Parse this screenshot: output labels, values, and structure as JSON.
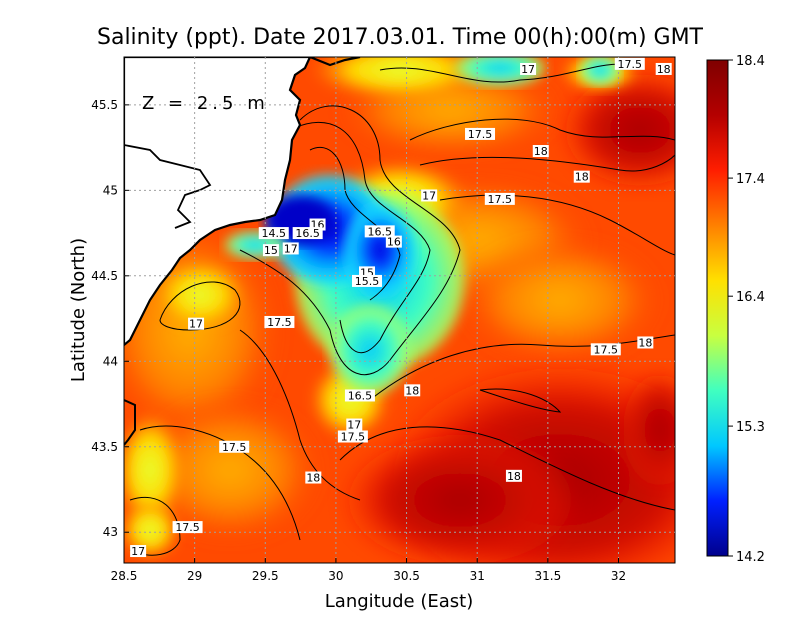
{
  "title": "Salinity (ppt). Date 2017.03.01. Time 00(h):00(m) GMT",
  "depth_label": "Z = 2.5 m",
  "xlabel": "Langitude (East)",
  "ylabel": "Latitude (North)",
  "chart_data": {
    "type": "heatmap",
    "title": "Salinity (ppt). Date 2017.03.01. Time 00(h):00(m) GMT",
    "xlabel": "Langitude (East)",
    "ylabel": "Latitude (North)",
    "xlim": [
      28.5,
      32.4
    ],
    "ylim": [
      42.82,
      45.78
    ],
    "x_ticks": [
      "28.5",
      "29",
      "29.5",
      "30",
      "30.5",
      "31",
      "31.5",
      "32"
    ],
    "y_ticks": [
      "43",
      "43.5",
      "44",
      "44.5",
      "45",
      "45.5"
    ],
    "colorbar": {
      "range": [
        14.2,
        18.4
      ],
      "ticks": [
        "14.2",
        "15.3",
        "16.4",
        "17.4",
        "18.4"
      ],
      "colormap": [
        "#00008c",
        "#0020ff",
        "#00c8ff",
        "#40ffc0",
        "#c8ff40",
        "#ffe000",
        "#ff8000",
        "#ff1e00",
        "#b40000",
        "#7f0000"
      ]
    },
    "contour_labels": [
      {
        "text": "17",
        "x": 31.36,
        "y": 45.71
      },
      {
        "text": "17.5",
        "x": 32.08,
        "y": 45.74
      },
      {
        "text": "18",
        "x": 32.32,
        "y": 45.71
      },
      {
        "text": "17.5",
        "x": 31.02,
        "y": 45.33
      },
      {
        "text": "18",
        "x": 31.45,
        "y": 45.23
      },
      {
        "text": "18",
        "x": 31.74,
        "y": 45.08
      },
      {
        "text": "17",
        "x": 30.66,
        "y": 44.97
      },
      {
        "text": "17.5",
        "x": 31.16,
        "y": 44.95
      },
      {
        "text": "16",
        "x": 29.87,
        "y": 44.8
      },
      {
        "text": "14.5",
        "x": 29.56,
        "y": 44.75
      },
      {
        "text": "16.5",
        "x": 29.8,
        "y": 44.75
      },
      {
        "text": "16.5",
        "x": 30.31,
        "y": 44.76
      },
      {
        "text": "16",
        "x": 30.41,
        "y": 44.7
      },
      {
        "text": "15",
        "x": 29.54,
        "y": 44.65
      },
      {
        "text": "17",
        "x": 29.68,
        "y": 44.66
      },
      {
        "text": "15",
        "x": 30.22,
        "y": 44.52
      },
      {
        "text": "15.5",
        "x": 30.22,
        "y": 44.47
      },
      {
        "text": "17",
        "x": 29.01,
        "y": 44.22
      },
      {
        "text": "17.5",
        "x": 29.6,
        "y": 44.23
      },
      {
        "text": "17.5",
        "x": 31.91,
        "y": 44.07
      },
      {
        "text": "18",
        "x": 32.19,
        "y": 44.11
      },
      {
        "text": "18",
        "x": 30.54,
        "y": 43.83
      },
      {
        "text": "16.5",
        "x": 30.17,
        "y": 43.8
      },
      {
        "text": "17",
        "x": 30.13,
        "y": 43.63
      },
      {
        "text": "17.5",
        "x": 30.12,
        "y": 43.56
      },
      {
        "text": "17.5",
        "x": 29.28,
        "y": 43.5
      },
      {
        "text": "18",
        "x": 29.84,
        "y": 43.32
      },
      {
        "text": "18",
        "x": 31.26,
        "y": 43.33
      },
      {
        "text": "17.5",
        "x": 28.95,
        "y": 43.03
      },
      {
        "text": "17",
        "x": 28.6,
        "y": 42.89
      }
    ]
  }
}
